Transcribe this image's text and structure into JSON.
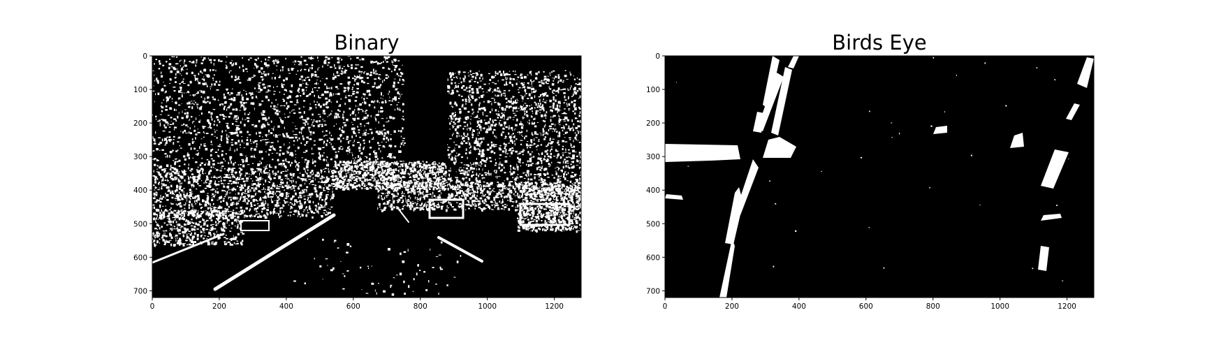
{
  "panels": [
    {
      "title": "Binary",
      "xticks": [
        "0",
        "200",
        "400",
        "600",
        "800",
        "1000",
        "1200"
      ],
      "yticks": [
        "0",
        "100",
        "200",
        "300",
        "400",
        "500",
        "600",
        "700"
      ],
      "xlim": [
        0,
        1280
      ],
      "ylim": [
        720,
        0
      ]
    },
    {
      "title": "Birds Eye",
      "xticks": [
        "0",
        "200",
        "400",
        "600",
        "800",
        "1000",
        "1200"
      ],
      "yticks": [
        "0",
        "100",
        "200",
        "300",
        "400",
        "500",
        "600",
        "700"
      ],
      "xlim": [
        0,
        1280
      ],
      "ylim": [
        720,
        0
      ]
    }
  ],
  "colors": {
    "background": "#000000",
    "foreground": "#ffffff"
  }
}
